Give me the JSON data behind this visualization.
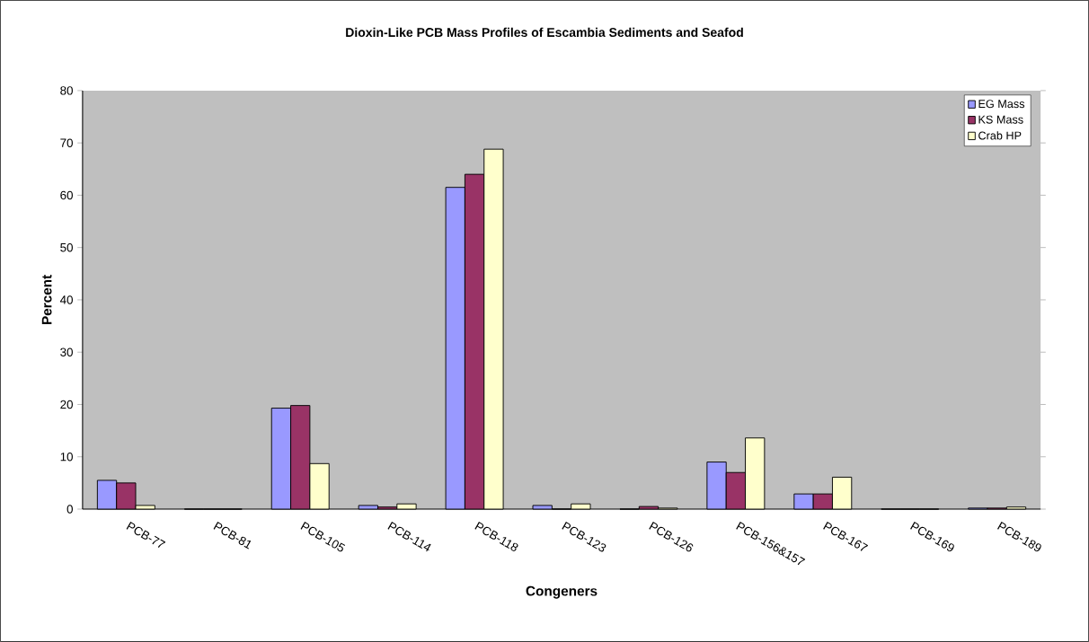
{
  "chart_data": {
    "type": "bar",
    "title": "Dioxin-Like PCB Mass Profiles of Escambia Sediments and Seafod",
    "xlabel": "Congeners",
    "ylabel": "Percent",
    "categories": [
      "PCB-77",
      "PCB-81",
      "PCB-105",
      "PCB-114",
      "PCB-118",
      "PCB-123",
      "PCB-126",
      "PCB-156&157",
      "PCB-167",
      "PCB-169",
      "PCB-189"
    ],
    "series": [
      {
        "name": "EG Mass",
        "color": "#9999ff",
        "values": [
          5.5,
          0,
          19.3,
          0.7,
          61.5,
          0.7,
          0,
          9.0,
          2.9,
          0,
          0.2
        ]
      },
      {
        "name": "KS Mass",
        "color": "#993366",
        "values": [
          5.0,
          0,
          19.8,
          0.4,
          64.0,
          0,
          0.5,
          7.0,
          2.9,
          0,
          0.2
        ]
      },
      {
        "name": "Crab HP",
        "color": "#ffffcc",
        "values": [
          0.7,
          0,
          8.7,
          1.0,
          68.8,
          1.0,
          0.2,
          13.6,
          6.1,
          0,
          0.4
        ]
      }
    ],
    "ylim": [
      0,
      80
    ],
    "yticks": [
      0,
      10,
      20,
      30,
      40,
      50,
      60,
      70,
      80
    ],
    "grid": false,
    "legend": "top right"
  }
}
